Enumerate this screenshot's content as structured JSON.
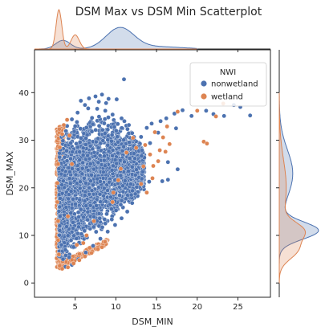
{
  "chart_data": {
    "type": "scatter",
    "title": "DSM Max vs DSM Min Scatterplot",
    "xlabel": "DSM_MIN",
    "ylabel": "DSM_MAX",
    "xlim": [
      0,
      29
    ],
    "ylim": [
      -3,
      49
    ],
    "xticks": [
      5,
      10,
      15,
      20,
      25
    ],
    "yticks": [
      0,
      10,
      20,
      30,
      40
    ],
    "grid": false,
    "legend": {
      "title": "NWI",
      "placement": "top-right",
      "entries": [
        "nonwetland",
        "wetland"
      ]
    },
    "colors": {
      "nonwetland": "#4c72b0",
      "wetland": "#dd8452"
    },
    "marginals": {
      "type": "kde",
      "x": {
        "nonwetland": {
          "peaks": [
            {
              "at": 3.5,
              "height": 0.22
            },
            {
              "at": 10.5,
              "height": 0.53
            }
          ]
        },
        "wetland": {
          "peaks": [
            {
              "at": 3.0,
              "height": 1.0
            },
            {
              "at": 5.0,
              "height": 0.36
            }
          ]
        }
      },
      "y": {
        "nonwetland": {
          "peaks": [
            {
              "at": 11.0,
              "height": 1.0
            },
            {
              "at": 23.0,
              "height": 0.35
            }
          ]
        },
        "wetland": {
          "peaks": [
            {
              "at": 7.0,
              "height": 0.45
            },
            {
              "at": 11.0,
              "height": 0.55
            }
          ]
        }
      }
    },
    "series": [
      {
        "name": "nonwetland",
        "points": [
          [
            11.0,
            42.8
          ],
          [
            8.3,
            39.6
          ],
          [
            7.5,
            39.2
          ],
          [
            9.1,
            38.7
          ],
          [
            6.7,
            38.8
          ],
          [
            10.1,
            38.6
          ],
          [
            7.9,
            38.1
          ],
          [
            5.7,
            38.3
          ],
          [
            8.8,
            37.8
          ],
          [
            6.2,
            37.4
          ],
          [
            24.5,
            37.4
          ],
          [
            25.3,
            37.0
          ],
          [
            21.1,
            36.2
          ],
          [
            22.0,
            35.5
          ],
          [
            26.5,
            35.2
          ],
          [
            23.3,
            35.1
          ],
          [
            18.2,
            36.3
          ],
          [
            17.2,
            35.6
          ],
          [
            19.3,
            35.1
          ],
          [
            16.2,
            34.6
          ],
          [
            15.5,
            34.0
          ],
          [
            14.4,
            33.5
          ],
          [
            13.8,
            32.6
          ],
          [
            17.4,
            32.5
          ],
          [
            15.2,
            31.6
          ],
          [
            13.1,
            30.7
          ],
          [
            14.2,
            29.4
          ],
          [
            16.4,
            25.4
          ],
          [
            17.6,
            23.9
          ],
          [
            16.4,
            21.7
          ],
          [
            15.7,
            21.4
          ],
          [
            14.1,
            21.3
          ],
          [
            13.2,
            21.9
          ],
          [
            12.4,
            22.7
          ],
          [
            12.0,
            24.4
          ],
          [
            11.7,
            26.2
          ],
          [
            12.2,
            28.8
          ],
          [
            12.0,
            31.5
          ],
          [
            11.6,
            33.2
          ],
          [
            10.7,
            34.6
          ],
          [
            9.6,
            35.4
          ],
          [
            8.7,
            36.2
          ],
          [
            7.7,
            36.6
          ],
          [
            6.6,
            36.7
          ],
          [
            5.3,
            35.8
          ],
          [
            4.6,
            34.4
          ],
          [
            4.0,
            33.0
          ],
          [
            3.5,
            31.0
          ],
          [
            3.2,
            28.0
          ],
          [
            3.0,
            24.0
          ],
          [
            3.0,
            20.0
          ],
          [
            3.1,
            16.0
          ],
          [
            3.1,
            12.0
          ],
          [
            3.3,
            8.0
          ],
          [
            3.5,
            5.0
          ],
          [
            3.8,
            3.4
          ],
          [
            4.6,
            3.8
          ],
          [
            5.4,
            5.0
          ],
          [
            6.3,
            6.4
          ],
          [
            7.2,
            7.8
          ],
          [
            8.1,
            9.3
          ],
          [
            9.0,
            10.8
          ],
          [
            9.9,
            12.2
          ],
          [
            10.7,
            13.6
          ],
          [
            11.4,
            15.0
          ],
          [
            12.0,
            16.8
          ]
        ]
      },
      {
        "name": "wetland",
        "points": [
          [
            23.2,
            37.7
          ],
          [
            20.0,
            36.2
          ],
          [
            22.3,
            35.0
          ],
          [
            17.6,
            36.0
          ],
          [
            16.3,
            32.9
          ],
          [
            15.8,
            30.6
          ],
          [
            14.8,
            31.7
          ],
          [
            16.6,
            29.2
          ],
          [
            16.1,
            27.6
          ],
          [
            15.4,
            27.9
          ],
          [
            14.2,
            27.0
          ],
          [
            13.6,
            29.0
          ],
          [
            12.5,
            28.4
          ],
          [
            12.1,
            30.5
          ],
          [
            11.3,
            27.4
          ],
          [
            10.6,
            24.0
          ],
          [
            10.3,
            21.6
          ],
          [
            9.7,
            19.0
          ],
          [
            9.6,
            17.0
          ],
          [
            7.3,
            13.0
          ],
          [
            6.4,
            10.0
          ],
          [
            6.0,
            8.4
          ],
          [
            20.8,
            29.7
          ],
          [
            21.2,
            29.3
          ],
          [
            13.8,
            19.0
          ],
          [
            13.1,
            20.8
          ],
          [
            14.6,
            24.6
          ],
          [
            15.2,
            25.6
          ],
          [
            13.4,
            24.5
          ],
          [
            14.5,
            22.0
          ],
          [
            4.0,
            34.3
          ],
          [
            3.6,
            33.2
          ],
          [
            3.4,
            31.3
          ],
          [
            3.1,
            28.5
          ],
          [
            2.9,
            25.0
          ],
          [
            2.8,
            21.0
          ],
          [
            2.8,
            17.0
          ],
          [
            2.9,
            13.0
          ],
          [
            2.9,
            9.0
          ],
          [
            3.0,
            6.0
          ],
          [
            3.1,
            3.6
          ],
          [
            3.4,
            3.0
          ],
          [
            4.1,
            3.3
          ],
          [
            4.8,
            4.1
          ],
          [
            5.5,
            4.8
          ],
          [
            6.2,
            5.6
          ],
          [
            7.0,
            6.3
          ],
          [
            7.8,
            7.1
          ],
          [
            4.3,
            31.0
          ],
          [
            4.6,
            25.0
          ],
          [
            4.1,
            14.0
          ],
          [
            5.2,
            8.0
          ]
        ]
      }
    ]
  }
}
